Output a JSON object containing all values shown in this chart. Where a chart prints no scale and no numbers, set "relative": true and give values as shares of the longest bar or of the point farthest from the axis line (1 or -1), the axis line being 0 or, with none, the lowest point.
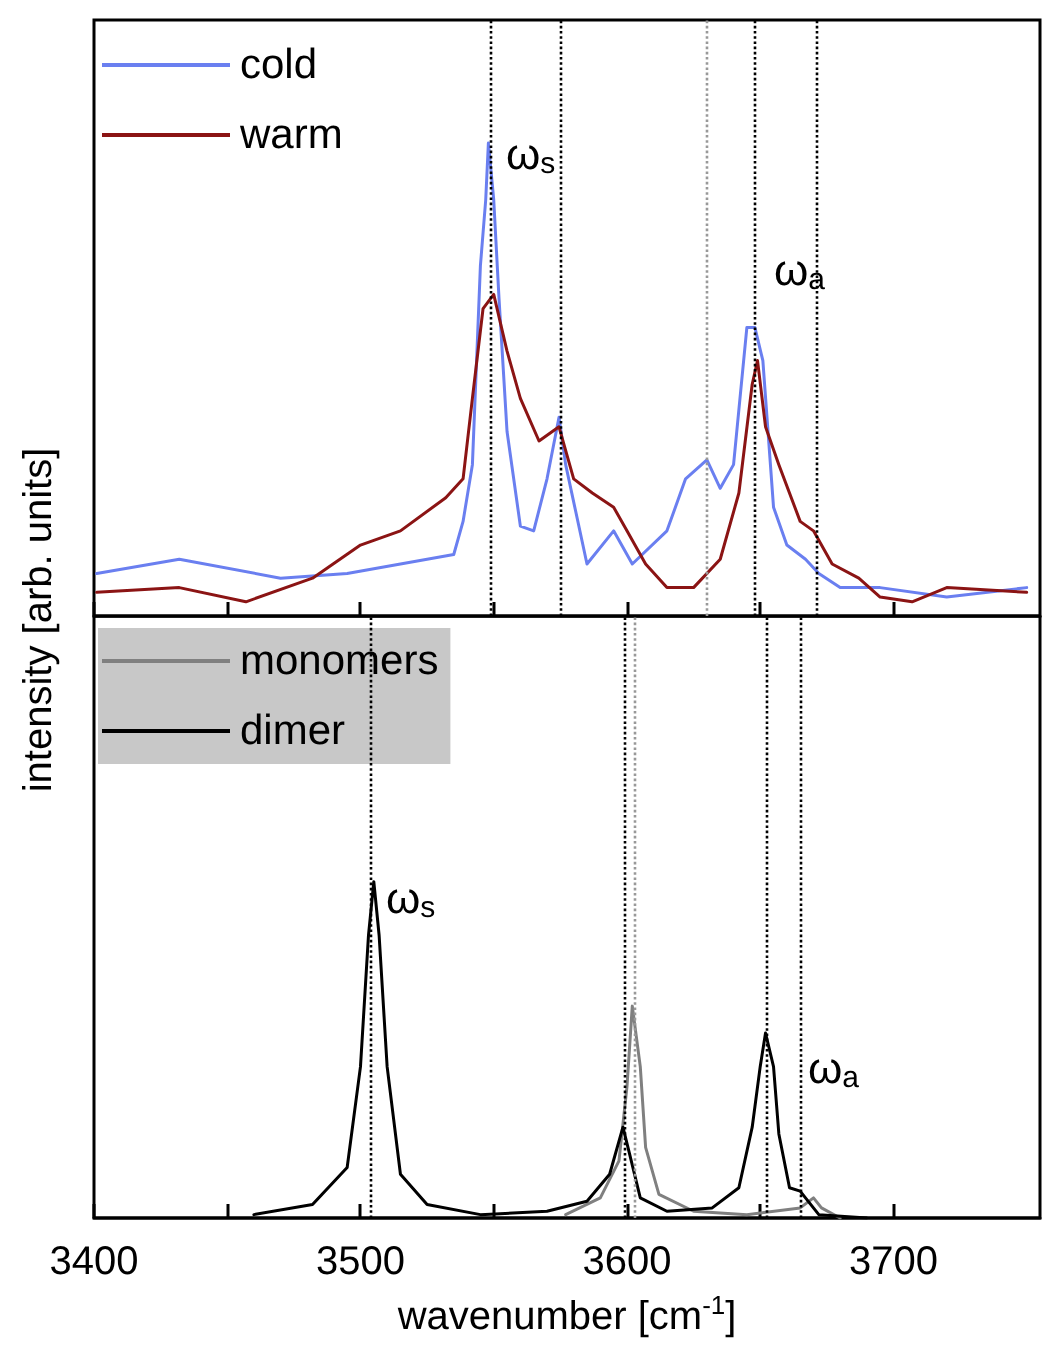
{
  "chart_data": [
    {
      "type": "line",
      "relative": true,
      "ylabel": "intensity [arb. units]",
      "legend": "top left",
      "grid": false,
      "marker": "none",
      "tick_labels": false,
      "xlim": [
        3400,
        3755
      ],
      "xticks": [
        3400,
        {
          "value": 3450,
          "label": null
        },
        3500,
        {
          "value": 3550,
          "label": null
        },
        3600,
        {
          "value": 3650,
          "label": null
        },
        3700
      ],
      "series": [
        {
          "name": "cold",
          "color": "#6a7ff0",
          "x": [
            3401,
            3432,
            3470,
            3495,
            3515,
            3535,
            3538.5,
            3542,
            3545,
            3547,
            3548,
            3550,
            3552,
            3555,
            3560,
            3565,
            3570,
            3574.5,
            3577,
            3585,
            3595,
            3602,
            3615,
            3622,
            3630,
            3635,
            3640,
            3645,
            3648,
            3651,
            3655,
            3660,
            3667,
            3672,
            3680,
            3695,
            3720,
            3750
          ],
          "values": [
            0.09,
            0.12,
            0.08,
            0.09,
            0.11,
            0.13,
            0.2,
            0.32,
            0.74,
            0.88,
            1,
            0.88,
            0.67,
            0.39,
            0.19,
            0.18,
            0.29,
            0.42,
            0.32,
            0.11,
            0.18,
            0.11,
            0.18,
            0.29,
            0.33,
            0.27,
            0.32,
            0.61,
            0.61,
            0.54,
            0.23,
            0.15,
            0.12,
            0.09,
            0.06,
            0.06,
            0.04,
            0.06
          ]
        },
        {
          "name": "warm",
          "color": "#8b1414",
          "x": [
            3401,
            3432,
            3457,
            3482,
            3500,
            3515,
            3532,
            3538.5,
            3542,
            3546,
            3550,
            3555,
            3560,
            3567,
            3574.5,
            3580,
            3587,
            3595,
            3600,
            3607,
            3615,
            3625,
            3635,
            3642,
            3647,
            3649,
            3652,
            3657,
            3665,
            3670,
            3677,
            3687,
            3695,
            3707,
            3720,
            3750
          ],
          "values": [
            0.05,
            0.06,
            0.03,
            0.08,
            0.15,
            0.18,
            0.25,
            0.29,
            0.46,
            0.65,
            0.68,
            0.56,
            0.46,
            0.37,
            0.4,
            0.29,
            0.26,
            0.23,
            0.18,
            0.11,
            0.06,
            0.06,
            0.12,
            0.26,
            0.49,
            0.54,
            0.4,
            0.32,
            0.2,
            0.18,
            0.11,
            0.08,
            0.04,
            0.03,
            0.06,
            0.05
          ]
        }
      ],
      "ref_lines": [
        {
          "axis": "x",
          "value": 3549,
          "color": "#000000",
          "line_style": "dotted"
        },
        {
          "axis": "x",
          "value": 3575,
          "color": "#000000",
          "line_style": "dotted"
        },
        {
          "axis": "x",
          "value": 3630,
          "color": "#999999",
          "line_style": "dotted"
        },
        {
          "axis": "x",
          "value": 3648,
          "color": "#000000",
          "line_style": "dotted"
        },
        {
          "axis": "x",
          "value": 3671,
          "color": "#000000",
          "line_style": "dotted"
        }
      ],
      "annotations": [
        "ω$_{s}$",
        "ω$_{a}$"
      ]
    },
    {
      "type": "line",
      "relative": true,
      "xlabel": "wavenumber [cm$^{-1}$]",
      "legend": "top left",
      "grid": false,
      "marker": "none",
      "tick_labels": "x",
      "xlim": [
        3400,
        3755
      ],
      "xticks": [
        3400,
        {
          "value": 3450,
          "label": null
        },
        3500,
        {
          "value": 3550,
          "label": null
        },
        3600,
        {
          "value": 3650,
          "label": null
        },
        3700
      ],
      "series": [
        {
          "name": "monomers",
          "color": "#808080",
          "x": [
            3577,
            3590,
            3597,
            3600,
            3602,
            3605,
            3607,
            3612,
            3625,
            3645,
            3665,
            3670,
            3673,
            3680
          ],
          "values": [
            0.01,
            0.06,
            0.17,
            0.39,
            0.63,
            0.45,
            0.21,
            0.07,
            0.02,
            0.01,
            0.03,
            0.06,
            0.03,
            0
          ]
        },
        {
          "name": "dimer",
          "color": "#000000",
          "x": [
            3460,
            3482,
            3495,
            3500,
            3503,
            3505,
            3507,
            3510,
            3515,
            3525,
            3545,
            3570,
            3585,
            3593.5,
            3598.5,
            3601,
            3605,
            3615,
            3632,
            3642,
            3647,
            3650,
            3652,
            3655,
            3657,
            3661,
            3665,
            3667,
            3672,
            3690
          ],
          "values": [
            0.01,
            0.04,
            0.15,
            0.45,
            0.84,
            1,
            0.84,
            0.45,
            0.13,
            0.04,
            0.01,
            0.02,
            0.05,
            0.13,
            0.27,
            0.19,
            0.06,
            0.02,
            0.03,
            0.09,
            0.27,
            0.45,
            0.55,
            0.45,
            0.25,
            0.09,
            0.08,
            0.06,
            0.01,
            0
          ]
        }
      ],
      "ref_lines": [
        {
          "axis": "x",
          "value": 3504,
          "color": "#000000",
          "line_style": "dotted"
        },
        {
          "axis": "x",
          "value": 3599,
          "color": "#000000",
          "line_style": "dotted"
        },
        {
          "axis": "x",
          "value": 3603,
          "color": "#999999",
          "line_style": "dotted"
        },
        {
          "axis": "x",
          "value": 3652,
          "color": "#000000",
          "line_style": "dotted"
        },
        {
          "axis": "x",
          "value": 3665,
          "color": "#000000",
          "line_style": "dotted"
        }
      ],
      "annotations": [
        "ω$_{s}$",
        "ω$_{a}$"
      ]
    }
  ]
}
